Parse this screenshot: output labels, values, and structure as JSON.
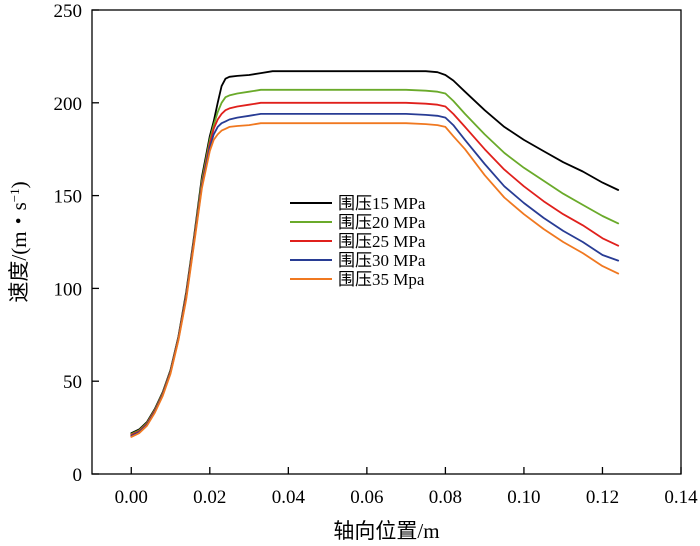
{
  "chart_data": {
    "type": "line",
    "title": "",
    "xlabel": "轴向位置/m",
    "ylabel": {
      "base": "速度/(m・s",
      "superscript": "−1",
      "close": ")"
    },
    "xlim": [
      -0.01,
      0.14
    ],
    "ylim": [
      0,
      250
    ],
    "xticks": [
      0.0,
      0.02,
      0.04,
      0.06,
      0.08,
      0.1,
      0.12,
      0.14
    ],
    "yticks": [
      0,
      50,
      100,
      150,
      200,
      250
    ],
    "xtick_labels": [
      "0.00",
      "0.02",
      "0.04",
      "0.06",
      "0.08",
      "0.10",
      "0.12",
      "0.14"
    ],
    "ytick_labels": [
      "0",
      "50",
      "100",
      "150",
      "200",
      "250"
    ],
    "grid": false,
    "legend_position": "center",
    "series": [
      {
        "name": "围压15 MPa",
        "color": "#000000",
        "x": [
          0,
          0.002,
          0.004,
          0.006,
          0.008,
          0.01,
          0.012,
          0.014,
          0.016,
          0.018,
          0.02,
          0.021,
          0.022,
          0.023,
          0.024,
          0.025,
          0.027,
          0.03,
          0.033,
          0.036,
          0.04,
          0.05,
          0.06,
          0.07,
          0.075,
          0.078,
          0.08,
          0.082,
          0.085,
          0.09,
          0.095,
          0.1,
          0.105,
          0.11,
          0.115,
          0.12,
          0.124
        ],
        "y": [
          22,
          24,
          28,
          35,
          44,
          56,
          74,
          98,
          128,
          160,
          182,
          190,
          200,
          209,
          213,
          214,
          214.5,
          215,
          216,
          217,
          217,
          217,
          217,
          217,
          217,
          216.5,
          215,
          212,
          206,
          196,
          187,
          180,
          174,
          168,
          163,
          157,
          153
        ]
      },
      {
        "name": "围压20 MPa",
        "color": "#6aaa2a",
        "x": [
          0,
          0.002,
          0.004,
          0.006,
          0.008,
          0.01,
          0.012,
          0.014,
          0.016,
          0.018,
          0.02,
          0.021,
          0.022,
          0.023,
          0.024,
          0.025,
          0.027,
          0.03,
          0.033,
          0.036,
          0.04,
          0.05,
          0.06,
          0.07,
          0.075,
          0.078,
          0.08,
          0.082,
          0.085,
          0.09,
          0.095,
          0.1,
          0.105,
          0.11,
          0.115,
          0.12,
          0.124
        ],
        "y": [
          21.5,
          23.5,
          27.5,
          34.5,
          43.5,
          55.5,
          73.5,
          97,
          127,
          158,
          180,
          188,
          195,
          200,
          203,
          204,
          205,
          206,
          207,
          207,
          207,
          207,
          207,
          207,
          206.5,
          206,
          205,
          201,
          194,
          183,
          173,
          165,
          158,
          151,
          145,
          139,
          135
        ]
      },
      {
        "name": "围压25 MPa",
        "color": "#e0201c",
        "x": [
          0,
          0.002,
          0.004,
          0.006,
          0.008,
          0.01,
          0.012,
          0.014,
          0.016,
          0.018,
          0.02,
          0.021,
          0.022,
          0.023,
          0.024,
          0.025,
          0.027,
          0.03,
          0.033,
          0.036,
          0.04,
          0.05,
          0.06,
          0.07,
          0.075,
          0.078,
          0.08,
          0.082,
          0.085,
          0.09,
          0.095,
          0.1,
          0.105,
          0.11,
          0.115,
          0.12,
          0.124
        ],
        "y": [
          21,
          23,
          27,
          34,
          43,
          55,
          73,
          96,
          126,
          156,
          178,
          186,
          191,
          194,
          196,
          197,
          198,
          199,
          200,
          200,
          200,
          200,
          200,
          200,
          199.5,
          199,
          198,
          194,
          187,
          175,
          164,
          155,
          147,
          140,
          134,
          127,
          123
        ]
      },
      {
        "name": "围压30 MPa",
        "color": "#283c94",
        "x": [
          0,
          0.002,
          0.004,
          0.006,
          0.008,
          0.01,
          0.012,
          0.014,
          0.016,
          0.018,
          0.02,
          0.021,
          0.022,
          0.023,
          0.024,
          0.025,
          0.027,
          0.03,
          0.033,
          0.036,
          0.04,
          0.05,
          0.06,
          0.07,
          0.075,
          0.078,
          0.08,
          0.082,
          0.085,
          0.09,
          0.095,
          0.1,
          0.105,
          0.11,
          0.115,
          0.12,
          0.124
        ],
        "y": [
          20.5,
          22.5,
          26.5,
          33.5,
          42.5,
          54.5,
          72.5,
          95,
          125,
          155,
          176,
          183,
          187,
          189,
          190,
          191,
          192,
          193,
          194,
          194,
          194,
          194,
          194,
          194,
          193.5,
          193,
          192,
          188,
          180,
          167,
          155,
          146,
          138,
          131,
          125,
          118,
          115
        ]
      },
      {
        "name": "围压35 Mpa",
        "color": "#f07820",
        "x": [
          0,
          0.002,
          0.004,
          0.006,
          0.008,
          0.01,
          0.012,
          0.014,
          0.016,
          0.018,
          0.02,
          0.021,
          0.022,
          0.023,
          0.024,
          0.025,
          0.027,
          0.03,
          0.033,
          0.036,
          0.04,
          0.05,
          0.06,
          0.07,
          0.075,
          0.078,
          0.08,
          0.082,
          0.085,
          0.09,
          0.095,
          0.1,
          0.105,
          0.11,
          0.115,
          0.12,
          0.124
        ],
        "y": [
          20,
          22,
          26,
          33,
          42,
          54,
          72,
          94,
          124,
          154,
          174,
          180,
          183,
          185,
          186,
          187,
          187.5,
          188,
          189,
          189,
          189,
          189,
          189,
          189,
          188.5,
          188,
          187,
          182,
          175,
          161,
          149,
          140,
          132,
          125,
          119,
          112,
          108
        ]
      }
    ]
  }
}
